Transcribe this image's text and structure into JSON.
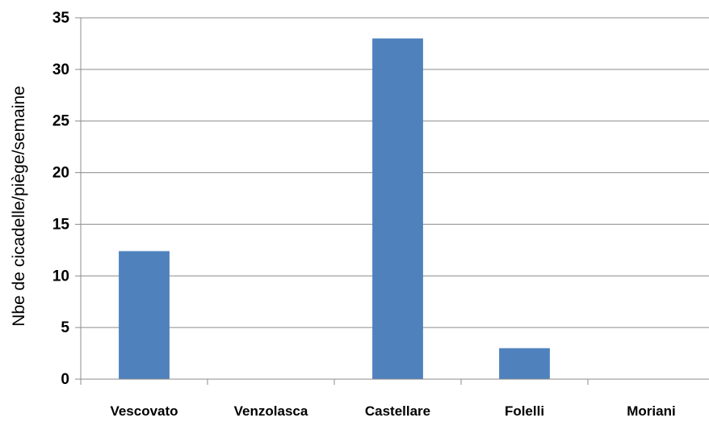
{
  "chart_data": {
    "type": "bar",
    "categories": [
      "Vescovato",
      "Venzolasca",
      "Castellare",
      "Folelli",
      "Moriani"
    ],
    "values": [
      12.4,
      0,
      33,
      3,
      0
    ],
    "title": "",
    "xlabel": "",
    "ylabel": "Nbe de cicadelle/piège/semaine",
    "ylim": [
      0,
      35
    ],
    "yticks": [
      0,
      5,
      10,
      15,
      20,
      25,
      30,
      35
    ],
    "grid": true,
    "legend": "none",
    "bar_color": "#4f81bd",
    "grid_color": "#8c8c8c"
  }
}
